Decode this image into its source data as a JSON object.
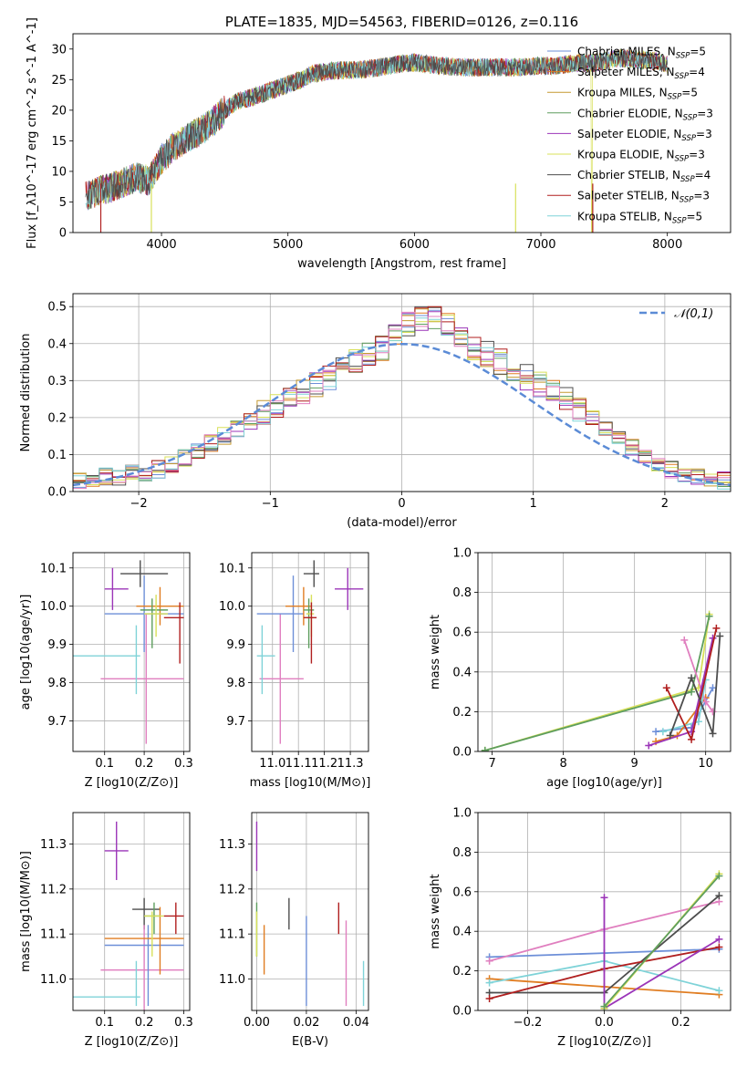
{
  "chart_data": [
    {
      "id": "spectrum",
      "type": "line",
      "title": "PLATE=1835, MJD=54563, FIBERID=0126, z=0.116",
      "xlabel": "wavelength [Angstrom, rest frame]",
      "ylabel": "Flux [f_λ10^-17 erg cm^-2 s^-1 A^-1]",
      "xlim": [
        3300,
        8500
      ],
      "ylim": [
        0,
        32.5
      ],
      "xticks": [
        4000,
        5000,
        6000,
        7000,
        8000
      ],
      "yticks": [
        0,
        5,
        10,
        15,
        20,
        25,
        30
      ],
      "grid": false,
      "legend_position": "right",
      "envelope": {
        "x": [
          3400,
          3500,
          3600,
          3700,
          3800,
          3900,
          4000,
          4100,
          4200,
          4300,
          4400,
          4500,
          4600,
          4700,
          4800,
          4900,
          5000,
          5100,
          5200,
          5300,
          5400,
          5500,
          5600,
          5700,
          5800,
          5900,
          6000,
          6100,
          6200,
          6300,
          6400,
          6500,
          6600,
          6700,
          6800,
          6900,
          7000,
          7100,
          7200,
          7300,
          7400,
          7500,
          7600,
          7700,
          7800,
          7900,
          8000,
          8100,
          8200
        ],
        "y": [
          6.0,
          6.8,
          7.3,
          8.2,
          9.0,
          8.5,
          12.0,
          14.0,
          15.5,
          16.5,
          18.0,
          20.0,
          21.5,
          22.0,
          22.7,
          23.5,
          24.2,
          25.0,
          26.0,
          26.3,
          26.5,
          26.5,
          26.7,
          26.9,
          27.3,
          27.6,
          27.8,
          27.5,
          27.3,
          27.1,
          27.0,
          27.0,
          27.0,
          27.0,
          27.0,
          27.1,
          27.3,
          27.2,
          27.5,
          27.7,
          27.7,
          28.0,
          28.5,
          28.4,
          28.2,
          28.0,
          27.5,
          27.0,
          26.8
        ]
      },
      "series": [
        {
          "name": "Chabrier MILES, N_SSP=5",
          "color": "#6d8fd8"
        },
        {
          "name": "Salpeter MILES, N_SSP=4",
          "color": "#e07d22"
        },
        {
          "name": "Kroupa MILES, N_SSP=5",
          "color": "#c59a30"
        },
        {
          "name": "Chabrier ELODIE, N_SSP=3",
          "color": "#5e9e5e"
        },
        {
          "name": "Salpeter ELODIE, N_SSP=3",
          "color": "#9b35b8"
        },
        {
          "name": "Kroupa ELODIE, N_SSP=3",
          "color": "#d8e05a"
        },
        {
          "name": "Chabrier STELIB, N_SSP=4",
          "color": "#4d4d4d"
        },
        {
          "name": "Salpeter STELIB, N_SSP=3",
          "color": "#b01f1f"
        },
        {
          "name": "Kroupa STELIB, N_SSP=5",
          "color": "#7fd3d8"
        }
      ]
    },
    {
      "id": "residuals",
      "type": "line",
      "xlabel": "(data-model)/error",
      "ylabel": "Normed distribution",
      "xlim": [
        -2.5,
        2.5
      ],
      "ylim": [
        0,
        0.535
      ],
      "xticks": [
        -2,
        -1,
        0,
        1,
        2
      ],
      "yticks": [
        0.0,
        0.1,
        0.2,
        0.3,
        0.4,
        0.5
      ],
      "grid": true,
      "legend_position": "top-right",
      "reference": {
        "name": "𝒩(0,1)",
        "color": "#5b8bd6"
      },
      "bin_width": 0.1,
      "bin_start": -2.5,
      "histogram_values": [
        0.03,
        0.03,
        0.04,
        0.04,
        0.05,
        0.05,
        0.06,
        0.07,
        0.09,
        0.11,
        0.13,
        0.15,
        0.17,
        0.19,
        0.21,
        0.23,
        0.25,
        0.27,
        0.29,
        0.31,
        0.33,
        0.35,
        0.37,
        0.39,
        0.42,
        0.45,
        0.47,
        0.47,
        0.45,
        0.42,
        0.39,
        0.37,
        0.35,
        0.33,
        0.31,
        0.29,
        0.27,
        0.25,
        0.22,
        0.2,
        0.17,
        0.15,
        0.12,
        0.1,
        0.08,
        0.06,
        0.05,
        0.04,
        0.03,
        0.03
      ],
      "series_colors": [
        "#6d8fd8",
        "#e07d22",
        "#c59a30",
        "#5e9e5e",
        "#9b35b8",
        "#d8e05a",
        "#4d4d4d",
        "#b01f1f",
        "#7fd3d8",
        "#e07fbf"
      ]
    },
    {
      "id": "age-vs-Z",
      "type": "scatter",
      "xlabel": "Z [log10(Z/Z⊙)]",
      "ylabel": "age [log10(age/yr)]",
      "xlim": [
        0.02,
        0.315
      ],
      "ylim": [
        9.62,
        10.14
      ],
      "xticks": [
        0.1,
        0.2,
        0.3
      ],
      "yticks": [
        9.7,
        9.8,
        9.9,
        10.0,
        10.1
      ],
      "grid": true,
      "points": [
        {
          "x": 0.12,
          "y": 10.045,
          "xerr": [
            0.1,
            0.16
          ],
          "yerr": [
            9.99,
            10.1
          ],
          "color": "#9b35b8"
        },
        {
          "x": 0.19,
          "y": 10.085,
          "xerr": [
            0.14,
            0.26
          ],
          "yerr": [
            10.05,
            10.12
          ],
          "color": "#4d4d4d"
        },
        {
          "x": 0.205,
          "y": 9.81,
          "xerr": [
            0.09,
            0.3
          ],
          "yerr": [
            9.64,
            9.98
          ],
          "color": "#e07fbf"
        },
        {
          "x": 0.18,
          "y": 9.87,
          "xerr": [
            0.02,
            0.19
          ],
          "yerr": [
            9.77,
            9.95
          ],
          "color": "#7fd3d8"
        },
        {
          "x": 0.2,
          "y": 9.98,
          "xerr": [
            0.1,
            0.3
          ],
          "yerr": [
            9.88,
            10.08
          ],
          "color": "#6d8fd8"
        },
        {
          "x": 0.24,
          "y": 10.0,
          "xerr": [
            0.18,
            0.3
          ],
          "yerr": [
            9.95,
            10.05
          ],
          "color": "#e07d22"
        },
        {
          "x": 0.22,
          "y": 9.99,
          "xerr": [
            0.19,
            0.26
          ],
          "yerr": [
            9.89,
            10.02
          ],
          "color": "#5e9e5e"
        },
        {
          "x": 0.23,
          "y": 9.98,
          "xerr": [
            0.2,
            0.26
          ],
          "yerr": [
            9.92,
            10.03
          ],
          "color": "#d8e05a"
        },
        {
          "x": 0.29,
          "y": 9.97,
          "xerr": [
            0.25,
            0.3
          ],
          "yerr": [
            9.85,
            10.01
          ],
          "color": "#b01f1f"
        }
      ]
    },
    {
      "id": "age-vs-mass",
      "type": "scatter",
      "xlabel": "mass [log10(M/M⊙)]",
      "ylabel": "",
      "xlim": [
        10.92,
        11.37
      ],
      "ylim": [
        9.62,
        10.14
      ],
      "xticks": [
        11.0,
        11.1,
        11.2,
        11.3
      ],
      "yticks": [
        9.7,
        9.8,
        9.9,
        10.0,
        10.1
      ],
      "grid": true,
      "points": [
        {
          "x": 11.29,
          "y": 10.045,
          "xerr": [
            11.24,
            11.35
          ],
          "yerr": [
            9.99,
            10.1
          ],
          "color": "#9b35b8"
        },
        {
          "x": 11.16,
          "y": 10.085,
          "xerr": [
            11.12,
            11.18
          ],
          "yerr": [
            10.05,
            10.12
          ],
          "color": "#4d4d4d"
        },
        {
          "x": 11.03,
          "y": 9.81,
          "xerr": [
            10.95,
            11.12
          ],
          "yerr": [
            9.64,
            9.98
          ],
          "color": "#e07fbf"
        },
        {
          "x": 10.96,
          "y": 9.87,
          "xerr": [
            10.94,
            11.01
          ],
          "yerr": [
            9.77,
            9.95
          ],
          "color": "#7fd3d8"
        },
        {
          "x": 11.08,
          "y": 9.98,
          "xerr": [
            10.94,
            11.12
          ],
          "yerr": [
            9.88,
            10.08
          ],
          "color": "#6d8fd8"
        },
        {
          "x": 11.12,
          "y": 10.0,
          "xerr": [
            11.05,
            11.15
          ],
          "yerr": [
            9.95,
            10.05
          ],
          "color": "#e07d22"
        },
        {
          "x": 11.14,
          "y": 9.99,
          "xerr": [
            11.12,
            11.16
          ],
          "yerr": [
            9.89,
            10.02
          ],
          "color": "#5e9e5e"
        },
        {
          "x": 11.15,
          "y": 9.98,
          "xerr": [
            11.13,
            11.16
          ],
          "yerr": [
            9.92,
            10.03
          ],
          "color": "#d8e05a"
        },
        {
          "x": 11.15,
          "y": 9.97,
          "xerr": [
            11.12,
            11.17
          ],
          "yerr": [
            9.85,
            10.01
          ],
          "color": "#b01f1f"
        }
      ]
    },
    {
      "id": "mass-weight-vs-age",
      "type": "line",
      "xlabel": "age [log10(age/yr)]",
      "ylabel": "mass weight",
      "xlim": [
        6.8,
        10.35
      ],
      "ylim": [
        0,
        1.0
      ],
      "xticks": [
        7,
        8,
        9,
        10
      ],
      "yticks": [
        0.0,
        0.2,
        0.4,
        0.6,
        0.8,
        1.0
      ],
      "grid": true,
      "series": [
        {
          "color": "#d8e05a",
          "x": [
            6.9,
            9.9,
            10.05
          ],
          "y": [
            0.005,
            0.32,
            0.69
          ]
        },
        {
          "color": "#5e9e5e",
          "x": [
            6.9,
            9.8,
            10.05
          ],
          "y": [
            0.005,
            0.3,
            0.68
          ]
        },
        {
          "color": "#6d8fd8",
          "x": [
            9.3,
            9.8,
            10.1
          ],
          "y": [
            0.1,
            0.12,
            0.32
          ]
        },
        {
          "color": "#e07d22",
          "x": [
            9.3,
            9.6,
            10.0
          ],
          "y": [
            0.05,
            0.08,
            0.27
          ]
        },
        {
          "color": "#e07fbf",
          "x": [
            9.7,
            10.0,
            10.1
          ],
          "y": [
            0.56,
            0.25,
            0.2
          ]
        },
        {
          "color": "#7fd3d8",
          "x": [
            9.4,
            9.9,
            10.0
          ],
          "y": [
            0.1,
            0.15,
            0.36
          ]
        },
        {
          "color": "#9b35b8",
          "x": [
            9.2,
            9.8,
            10.1
          ],
          "y": [
            0.03,
            0.1,
            0.57
          ]
        },
        {
          "color": "#b01f1f",
          "x": [
            9.45,
            9.8,
            10.15
          ],
          "y": [
            0.32,
            0.06,
            0.62
          ]
        },
        {
          "color": "#4d4d4d",
          "x": [
            9.5,
            9.8,
            10.1,
            10.2
          ],
          "y": [
            0.08,
            0.37,
            0.09,
            0.58
          ]
        }
      ]
    },
    {
      "id": "mass-vs-Z",
      "type": "scatter",
      "xlabel": "Z [log10(Z/Z⊙)]",
      "ylabel": "mass [log10(M/M⊙)]",
      "xlim": [
        0.02,
        0.315
      ],
      "ylim": [
        10.93,
        11.37
      ],
      "xticks": [
        0.1,
        0.2,
        0.3
      ],
      "yticks": [
        11.0,
        11.1,
        11.2,
        11.3
      ],
      "grid": true,
      "points": [
        {
          "x": 0.13,
          "y": 11.285,
          "xerr": [
            0.1,
            0.16
          ],
          "yerr": [
            11.22,
            11.35
          ],
          "color": "#9b35b8"
        },
        {
          "x": 0.2,
          "y": 11.155,
          "xerr": [
            0.17,
            0.24
          ],
          "yerr": [
            11.11,
            11.18
          ],
          "color": "#4d4d4d"
        },
        {
          "x": 0.2,
          "y": 11.02,
          "xerr": [
            0.09,
            0.3
          ],
          "yerr": [
            10.93,
            11.12
          ],
          "color": "#e07fbf"
        },
        {
          "x": 0.18,
          "y": 10.96,
          "xerr": [
            0.02,
            0.19
          ],
          "yerr": [
            10.94,
            11.04
          ],
          "color": "#7fd3d8"
        },
        {
          "x": 0.21,
          "y": 11.075,
          "xerr": [
            0.1,
            0.3
          ],
          "yerr": [
            10.94,
            11.12
          ],
          "color": "#6d8fd8"
        },
        {
          "x": 0.24,
          "y": 11.09,
          "xerr": [
            0.1,
            0.3
          ],
          "yerr": [
            11.01,
            11.16
          ],
          "color": "#e07d22"
        },
        {
          "x": 0.225,
          "y": 11.14,
          "xerr": [
            0.2,
            0.24
          ],
          "yerr": [
            11.1,
            11.17
          ],
          "color": "#5e9e5e"
        },
        {
          "x": 0.22,
          "y": 11.14,
          "xerr": [
            0.2,
            0.25
          ],
          "yerr": [
            11.05,
            11.15
          ],
          "color": "#d8e05a"
        },
        {
          "x": 0.28,
          "y": 11.14,
          "xerr": [
            0.25,
            0.3
          ],
          "yerr": [
            11.1,
            11.17
          ],
          "color": "#b01f1f"
        }
      ]
    },
    {
      "id": "mass-vs-EBV",
      "type": "scatter",
      "xlabel": "E(B-V)",
      "ylabel": "",
      "xlim": [
        -0.002,
        0.045
      ],
      "ylim": [
        10.93,
        11.37
      ],
      "xticks": [
        0.0,
        0.02,
        0.04
      ],
      "yticks": [
        11.0,
        11.1,
        11.2,
        11.3
      ],
      "grid": true,
      "points": [
        {
          "x": 0.0,
          "y": 11.29,
          "yerr": [
            11.24,
            11.35
          ],
          "color": "#9b35b8"
        },
        {
          "x": 0.0,
          "y": 11.12,
          "yerr": [
            11.05,
            11.17
          ],
          "color": "#5e9e5e"
        },
        {
          "x": 0.0,
          "y": 11.1,
          "yerr": [
            11.05,
            11.15
          ],
          "color": "#d8e05a"
        },
        {
          "x": 0.003,
          "y": 11.06,
          "yerr": [
            11.01,
            11.12
          ],
          "color": "#e07d22"
        },
        {
          "x": 0.013,
          "y": 11.145,
          "yerr": [
            11.11,
            11.18
          ],
          "color": "#4d4d4d"
        },
        {
          "x": 0.02,
          "y": 11.03,
          "yerr": [
            10.94,
            11.14
          ],
          "color": "#6d8fd8"
        },
        {
          "x": 0.033,
          "y": 11.13,
          "yerr": [
            11.1,
            11.17
          ],
          "color": "#b01f1f"
        },
        {
          "x": 0.036,
          "y": 11.03,
          "yerr": [
            10.94,
            11.13
          ],
          "color": "#e07fbf"
        },
        {
          "x": 0.043,
          "y": 10.99,
          "yerr": [
            10.94,
            11.04
          ],
          "color": "#7fd3d8"
        }
      ]
    },
    {
      "id": "mass-weight-vs-Z",
      "type": "line",
      "xlabel": "Z [log10(Z/Z⊙)]",
      "ylabel": "mass weight",
      "xlim": [
        -0.33,
        0.33
      ],
      "ylim": [
        0,
        1.0
      ],
      "xticks": [
        -0.2,
        0.0,
        0.2
      ],
      "yticks": [
        0.0,
        0.2,
        0.4,
        0.6,
        0.8,
        1.0
      ],
      "grid": true,
      "series": [
        {
          "color": "#6d8fd8",
          "x": [
            -0.3,
            0.0,
            0.3
          ],
          "y": [
            0.27,
            0.29,
            0.31
          ]
        },
        {
          "color": "#e07fbf",
          "x": [
            -0.3,
            0.0,
            0.3
          ],
          "y": [
            0.25,
            0.41,
            0.55
          ]
        },
        {
          "color": "#e07d22",
          "x": [
            -0.3,
            0.0,
            0.3
          ],
          "y": [
            0.16,
            0.12,
            0.08
          ]
        },
        {
          "color": "#7fd3d8",
          "x": [
            -0.3,
            0.0,
            0.3
          ],
          "y": [
            0.14,
            0.25,
            0.1
          ]
        },
        {
          "color": "#4d4d4d",
          "x": [
            -0.3,
            0.0,
            0.3
          ],
          "y": [
            0.09,
            0.09,
            0.58
          ]
        },
        {
          "color": "#b01f1f",
          "x": [
            -0.3,
            0.0,
            0.3
          ],
          "y": [
            0.06,
            0.21,
            0.32
          ]
        },
        {
          "color": "#9b35b8",
          "x": [
            0.0,
            0.0,
            0.3
          ],
          "y": [
            0.57,
            0.01,
            0.36
          ]
        },
        {
          "color": "#d8e05a",
          "x": [
            0.0,
            0.3
          ],
          "y": [
            0.01,
            0.69
          ]
        },
        {
          "color": "#5e9e5e",
          "x": [
            0.0,
            0.3
          ],
          "y": [
            0.02,
            0.68
          ]
        }
      ]
    }
  ]
}
